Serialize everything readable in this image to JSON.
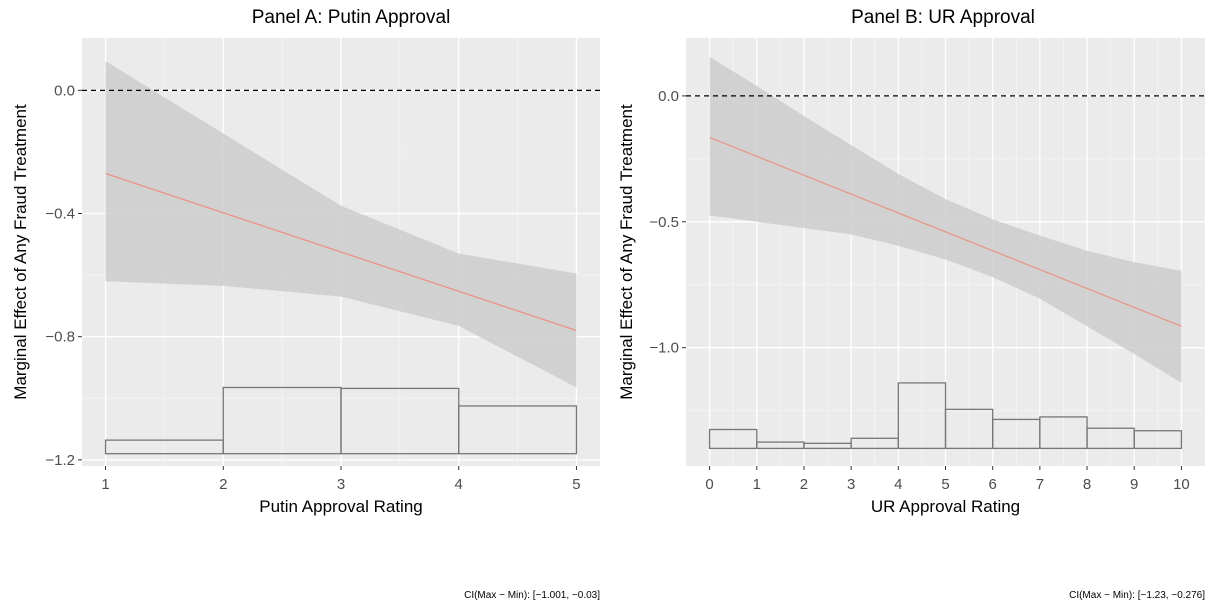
{
  "chart_data": [
    {
      "type": "line",
      "title": "Panel A: Putin Approval",
      "xlabel": "Putin Approval Rating",
      "ylabel": "Marginal Effect of Any Fraud Treatment",
      "xlim": [
        0.8,
        5.2
      ],
      "ylim": [
        -1.22,
        0.17
      ],
      "x_ticks": [
        1,
        2,
        3,
        4,
        5
      ],
      "y_ticks": [
        0.0,
        -0.4,
        -0.8,
        -1.2
      ],
      "y_tick_labels": [
        "0.0",
        "−0.4",
        "−0.8",
        "−1.2"
      ],
      "reference_line": 0.0,
      "effect": {
        "x": [
          1,
          5
        ],
        "y": [
          -0.27,
          -0.78
        ]
      },
      "ci": {
        "x": [
          1,
          2,
          3,
          4,
          5
        ],
        "lower": [
          -0.62,
          -0.635,
          -0.67,
          -0.765,
          -0.965
        ],
        "upper": [
          0.095,
          -0.14,
          -0.375,
          -0.53,
          -0.595
        ]
      },
      "histogram": {
        "bin_edges": [
          1,
          2,
          3,
          4,
          5
        ],
        "bar_tops": [
          -1.136,
          -0.965,
          -0.968,
          -1.025
        ],
        "baseline": -1.18
      },
      "note": "CI(Max − Min): [−1.001, −0.03]",
      "colors": {
        "line": "#e8968a",
        "ci": "#cccccc",
        "hist": "#777777"
      }
    },
    {
      "type": "line",
      "title": "Panel B: UR Approval",
      "xlabel": "UR Approval Rating",
      "ylabel": "Marginal Effect of Any Fraud Treatment",
      "xlim": [
        -0.5,
        10.5
      ],
      "ylim": [
        -1.47,
        0.23
      ],
      "x_ticks": [
        0,
        1,
        2,
        3,
        4,
        5,
        6,
        7,
        8,
        9,
        10
      ],
      "y_ticks": [
        0.0,
        -0.5,
        -1.0
      ],
      "y_tick_labels": [
        "0.0",
        "−0.5",
        "−1.0"
      ],
      "reference_line": 0.0,
      "effect": {
        "x": [
          0,
          10
        ],
        "y": [
          -0.165,
          -0.915
        ]
      },
      "ci": {
        "x": [
          0,
          1,
          2,
          3,
          4,
          5,
          6,
          7,
          8,
          9,
          10
        ],
        "lower": [
          -0.475,
          -0.5,
          -0.525,
          -0.55,
          -0.595,
          -0.65,
          -0.72,
          -0.805,
          -0.915,
          -1.025,
          -1.14
        ],
        "upper": [
          0.155,
          0.04,
          -0.08,
          -0.195,
          -0.31,
          -0.41,
          -0.49,
          -0.555,
          -0.615,
          -0.66,
          -0.695
        ]
      },
      "histogram": {
        "bin_edges": [
          0,
          1,
          2,
          3,
          4,
          5,
          6,
          7,
          8,
          9,
          10
        ],
        "bar_tops": [
          -1.325,
          -1.375,
          -1.38,
          -1.36,
          -1.14,
          -1.245,
          -1.285,
          -1.275,
          -1.32,
          -1.33
        ],
        "baseline": -1.4
      },
      "note": "CI(Max − Min): [−1.23, −0.276]",
      "colors": {
        "line": "#e8968a",
        "ci": "#cccccc",
        "hist": "#777777"
      }
    }
  ]
}
